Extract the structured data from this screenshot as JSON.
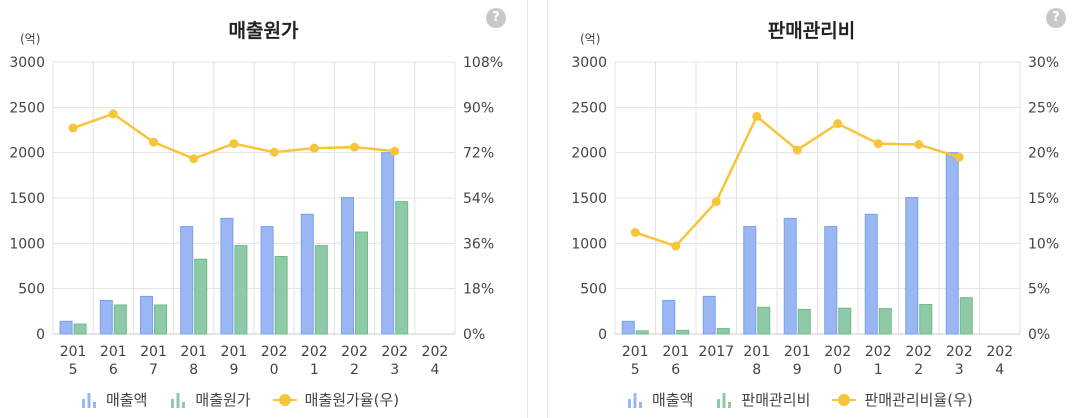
{
  "left": {
    "title": "매출원가",
    "unit": "(억)",
    "help": "?",
    "legend": [
      "매출액",
      "매출원가",
      "매출원가율(우)"
    ]
  },
  "right": {
    "title": "판매관리비",
    "unit": "(억)",
    "help": "?",
    "legend": [
      "매출액",
      "판매관리비",
      "판매관리비율(우)"
    ]
  },
  "colors": {
    "bar_blue": "#9ab7f4",
    "bar_blue_stroke": "#7b9fee",
    "bar_green": "#8fcaa7",
    "bar_green_stroke": "#6fb98c",
    "line": "#f7c53c",
    "grid": "#e3e3e3"
  },
  "chart_data": [
    {
      "type": "bar",
      "title": "매출원가",
      "categories": [
        [
          "201",
          "5"
        ],
        [
          "201",
          "6"
        ],
        [
          "201",
          "7"
        ],
        [
          "201",
          "8"
        ],
        [
          "201",
          "9"
        ],
        [
          "202",
          "0"
        ],
        [
          "202",
          "1"
        ],
        [
          "202",
          "2"
        ],
        [
          "202",
          "3"
        ],
        [
          "202",
          "4"
        ]
      ],
      "ylim": [
        0,
        3000
      ],
      "y_ticks": [
        "0",
        "500",
        "1000",
        "1500",
        "2000",
        "2500",
        "3000"
      ],
      "y2lim": [
        0,
        108
      ],
      "y2_ticks": [
        "0%",
        "18%",
        "36%",
        "54%",
        "72%",
        "90%",
        "108%"
      ],
      "series": [
        {
          "name": "매출액",
          "kind": "bar",
          "values": [
            140,
            370,
            415,
            1185,
            1275,
            1185,
            1320,
            1505,
            2000,
            null
          ]
        },
        {
          "name": "매출원가",
          "kind": "bar",
          "values": [
            110,
            320,
            320,
            825,
            975,
            855,
            975,
            1125,
            1460,
            null
          ]
        },
        {
          "name": "매출원가율(우)",
          "kind": "line",
          "axis": "right",
          "values": [
            81.8,
            87.4,
            76.2,
            69.6,
            75.6,
            72.2,
            73.8,
            74.2,
            72.6,
            null
          ]
        }
      ]
    },
    {
      "type": "bar",
      "title": "판매관리비",
      "categories": [
        [
          "201",
          "5"
        ],
        [
          "201",
          "6"
        ],
        [
          "2017"
        ],
        [
          "201",
          "8"
        ],
        [
          "201",
          "9"
        ],
        [
          "202",
          "0"
        ],
        [
          "202",
          "1"
        ],
        [
          "202",
          "2"
        ],
        [
          "202",
          "3"
        ],
        [
          "202",
          "4"
        ]
      ],
      "ylim": [
        0,
        3000
      ],
      "y_ticks": [
        "0",
        "500",
        "1000",
        "1500",
        "2000",
        "2500",
        "3000"
      ],
      "y2lim": [
        0,
        30
      ],
      "y2_ticks": [
        "0%",
        "5%",
        "10%",
        "15%",
        "20%",
        "25%",
        "30%"
      ],
      "series": [
        {
          "name": "매출액",
          "kind": "bar",
          "values": [
            140,
            370,
            415,
            1185,
            1275,
            1185,
            1320,
            1505,
            2000,
            null
          ]
        },
        {
          "name": "판매관리비",
          "kind": "bar",
          "values": [
            35,
            40,
            60,
            295,
            270,
            285,
            280,
            325,
            400,
            null
          ]
        },
        {
          "name": "판매관리비율(우)",
          "kind": "line",
          "axis": "right",
          "values": [
            11.2,
            9.7,
            14.6,
            24.0,
            20.3,
            23.2,
            21.0,
            20.9,
            19.5,
            null
          ]
        }
      ]
    }
  ]
}
